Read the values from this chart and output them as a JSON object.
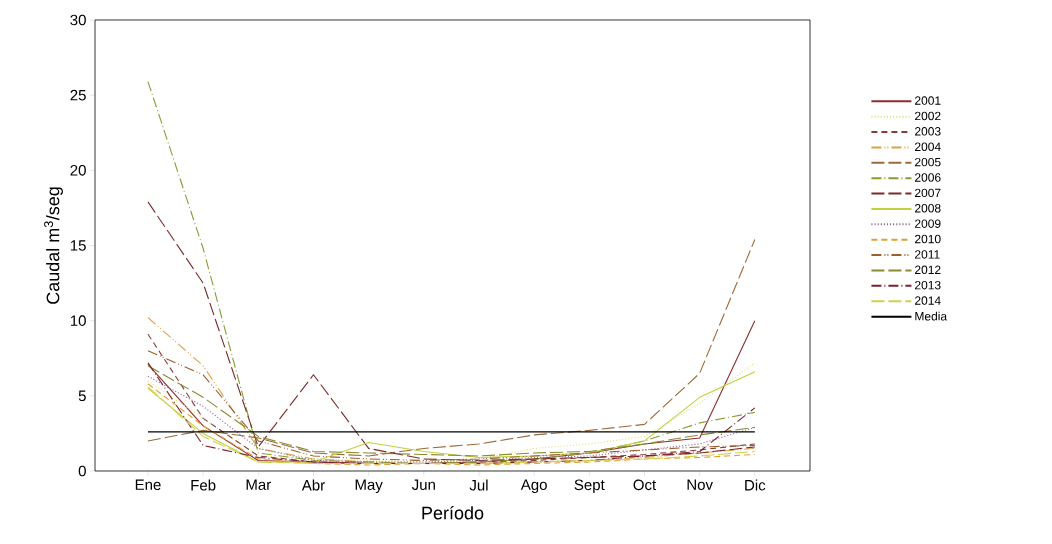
{
  "chart_data": {
    "type": "line",
    "xlabel": "Período",
    "ylabel": "Caudal m$^{3}$/seg",
    "categories": [
      "Ene",
      "Feb",
      "Mar",
      "Abr",
      "May",
      "Jun",
      "Jul",
      "Ago",
      "Sept",
      "Oct",
      "Nov",
      "Dic"
    ],
    "ylim": [
      0,
      30
    ],
    "yticks": [
      0,
      5,
      10,
      15,
      20,
      25,
      30
    ],
    "legend": "right",
    "grid": false,
    "marker": "none",
    "series": [
      {
        "name": "2001",
        "color": "#8b2e2e",
        "line_style": "solid",
        "values": [
          7.1,
          3,
          0.7,
          0.6,
          0.5,
          0.5,
          0.6,
          0.8,
          1.2,
          1.8,
          2.2,
          10
        ]
      },
      {
        "name": "2002",
        "color": "#e0e080",
        "line_style": "dotted",
        "values": [
          6,
          3.5,
          1,
          0.8,
          0.7,
          0.6,
          0.8,
          1.5,
          1.8,
          2.3,
          4.5,
          7.2
        ]
      },
      {
        "name": "2003",
        "color": "#8b3a3a",
        "line_style": "dashed",
        "values": [
          9.1,
          3.5,
          1,
          0.6,
          0.5,
          0.5,
          0.6,
          0.7,
          0.9,
          1.1,
          1.4,
          1.8
        ]
      },
      {
        "name": "2004",
        "color": "#e0a040",
        "line_style": "dashdotdot",
        "values": [
          10.2,
          7,
          1.5,
          0.8,
          0.6,
          0.5,
          0.5,
          0.6,
          0.7,
          0.9,
          1.2,
          1.5
        ]
      },
      {
        "name": "2005",
        "color": "#9b6a3a",
        "line_style": "longdash",
        "values": [
          2,
          2.7,
          2.2,
          1.2,
          1.0,
          1.5,
          1.8,
          2.4,
          2.7,
          3.1,
          6.5,
          15.4
        ]
      },
      {
        "name": "2006",
        "color": "#8a9a30",
        "line_style": "dashdot",
        "values": [
          25.9,
          14.8,
          1.2,
          0.7,
          0.6,
          0.5,
          0.6,
          0.8,
          1.2,
          2.0,
          3.2,
          3.9
        ]
      },
      {
        "name": "2007",
        "color": "#7a2a2a",
        "line_style": "longdash",
        "values": [
          17.9,
          12.5,
          1.6,
          6.4,
          1.5,
          0.8,
          0.7,
          0.8,
          0.9,
          1.0,
          1.2,
          1.6
        ]
      },
      {
        "name": "2008",
        "color": "#c0d040",
        "line_style": "solid",
        "values": [
          5.5,
          2.5,
          0.6,
          0.6,
          1.9,
          1.3,
          0.9,
          1.0,
          1.2,
          2.0,
          4.9,
          6.6
        ]
      },
      {
        "name": "2009",
        "color": "#8a6a8a",
        "line_style": "dotted",
        "values": [
          6.3,
          4.3,
          1.5,
          0.7,
          0.6,
          0.6,
          0.7,
          0.9,
          1.0,
          1.4,
          1.8,
          2.9
        ]
      },
      {
        "name": "2010",
        "color": "#e0a030",
        "line_style": "dashed",
        "values": [
          5.8,
          3,
          0.8,
          0.5,
          0.4,
          0.5,
          0.4,
          0.5,
          0.6,
          0.8,
          0.9,
          1.1
        ]
      },
      {
        "name": "2011",
        "color": "#9b6030",
        "line_style": "dashdotdot",
        "values": [
          8,
          6.4,
          2,
          1,
          0.8,
          0.7,
          0.8,
          1,
          1.2,
          1.4,
          1.6,
          1.7
        ]
      },
      {
        "name": "2012",
        "color": "#8a8a30",
        "line_style": "longdash",
        "values": [
          7.0,
          4.9,
          2.3,
          1.3,
          1.2,
          1.1,
          1.0,
          1.2,
          1.3,
          1.8,
          2.4,
          2.9
        ]
      },
      {
        "name": "2013",
        "color": "#7a2030",
        "line_style": "dashdot",
        "values": [
          7.2,
          1.7,
          0.9,
          0.6,
          0.5,
          0.5,
          0.5,
          0.6,
          0.7,
          1.0,
          1.3,
          4.2
        ]
      },
      {
        "name": "2014",
        "color": "#d0d050",
        "line_style": "longdash",
        "values": [
          5.6,
          2.3,
          0.6,
          0.5,
          0.5,
          0.5,
          0.5,
          0.6,
          0.7,
          0.8,
          1.0,
          1.3
        ]
      },
      {
        "name": "Media",
        "color": "#000000",
        "line_style": "solid",
        "values": [
          2.6,
          2.6,
          2.6,
          2.6,
          2.6,
          2.6,
          2.6,
          2.6,
          2.6,
          2.6,
          2.6,
          2.6
        ]
      }
    ]
  }
}
